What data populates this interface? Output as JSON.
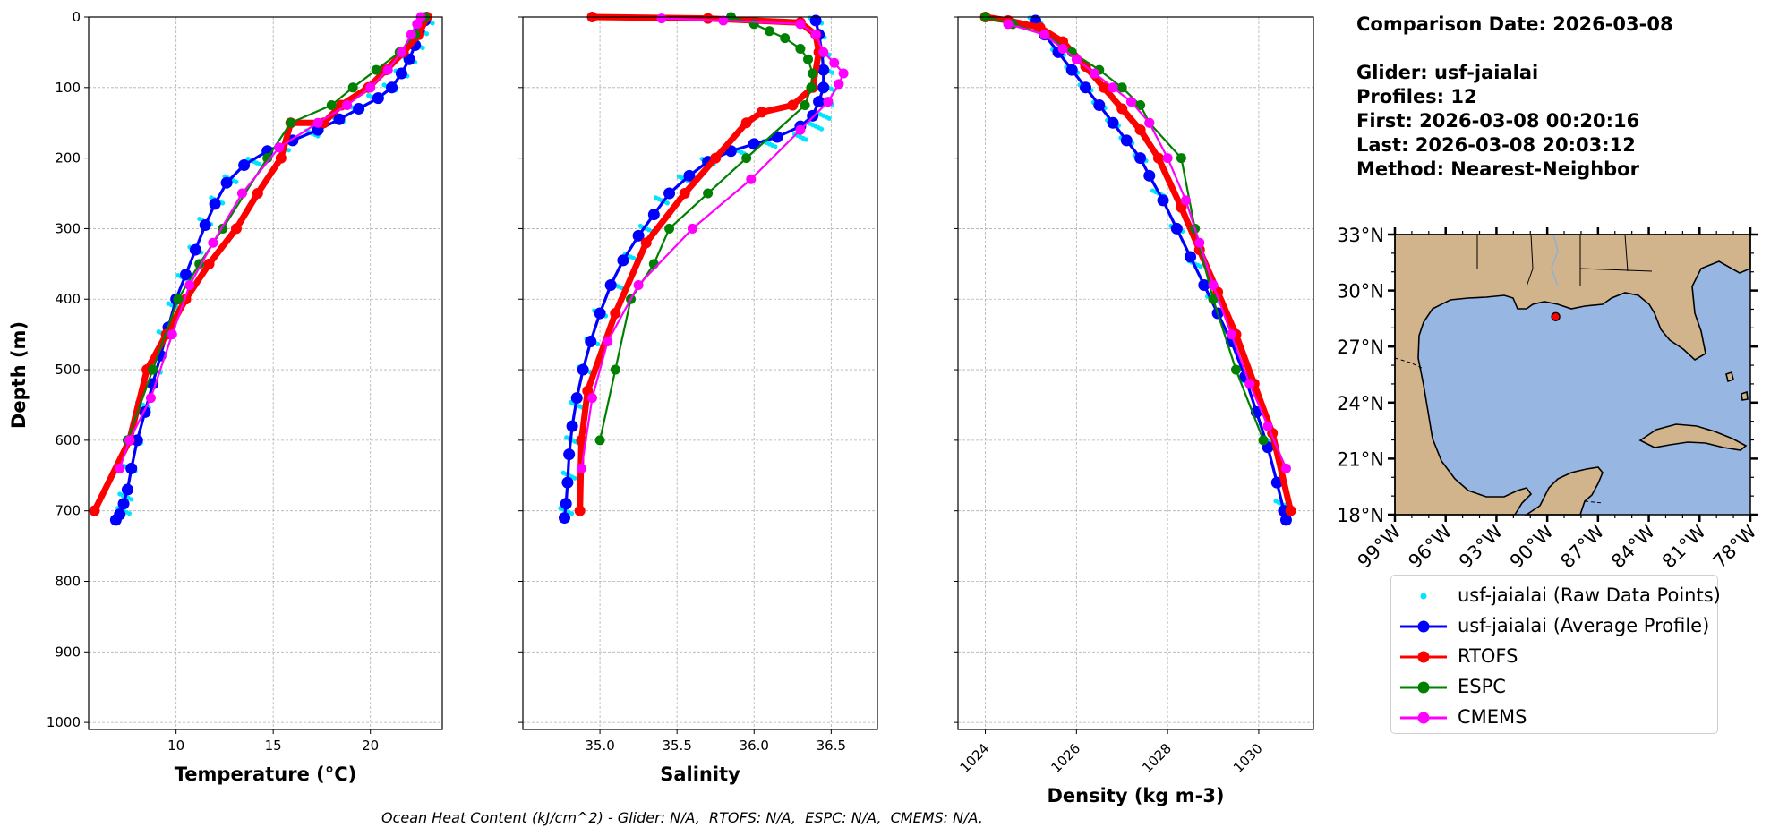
{
  "info": {
    "comparison_date": "Comparison Date: 2026-03-08",
    "glider": "Glider: usf-jaialai",
    "profiles": "Profiles: 12",
    "first": "First: 2026-03-08 00:20:16",
    "last": "Last: 2026-03-08 20:03:12",
    "method": "Method: Nearest-Neighbor"
  },
  "footer": "Ocean Heat Content (kJ/cm^2) - Glider: N/A,  RTOFS: N/A,  ESPC: N/A,  CMEMS: N/A,",
  "colors": {
    "raw": "#00e5ff",
    "average": "#0000ff",
    "rtofs": "#ff0000",
    "espc": "#008000",
    "cmems": "#ff00ff",
    "ocean": "#97b6e1",
    "land": "#d2b48c",
    "grid": "#b0b0b0"
  },
  "legend": [
    {
      "label": "usf-jaialai (Raw Data Points)",
      "key": "raw",
      "style": "dot"
    },
    {
      "label": "usf-jaialai (Average Profile)",
      "key": "average",
      "style": "line"
    },
    {
      "label": "RTOFS",
      "key": "rtofs",
      "style": "line"
    },
    {
      "label": "ESPC",
      "key": "espc",
      "style": "line"
    },
    {
      "label": "CMEMS",
      "key": "cmems",
      "style": "line"
    }
  ],
  "map": {
    "lat_ticks": [
      "18°N",
      "21°N",
      "24°N",
      "27°N",
      "30°N",
      "33°N"
    ],
    "lon_ticks": [
      "99°W",
      "96°W",
      "93°W",
      "90°W",
      "87°W",
      "84°W",
      "81°W",
      "78°W"
    ],
    "lat_range": [
      18,
      33
    ],
    "lon_range": [
      -99,
      -78
    ],
    "glider_position": {
      "lon": -89.5,
      "lat": 28.6
    }
  },
  "chart_data": [
    {
      "type": "line",
      "xlabel": "Temperature (°C)",
      "ylabel": "Depth (m)",
      "xlim": [
        5.5,
        23.7
      ],
      "ylim": [
        1010,
        0
      ],
      "xticks": [
        10,
        15,
        20
      ],
      "yticks": [
        0,
        100,
        200,
        300,
        400,
        500,
        600,
        700,
        800,
        900,
        1000
      ],
      "series": [
        {
          "name": "usf-jaialai (Raw Data Points)",
          "key": "raw",
          "mode": "scatter",
          "x": [
            22.9,
            22.6,
            22.4,
            22.0,
            21.6,
            21.0,
            20.2,
            19.2,
            18.3,
            17.0,
            15.5,
            14.0,
            12.8,
            12.1,
            11.5,
            11.0,
            10.4,
            9.9,
            9.4,
            8.9,
            8.3,
            7.9,
            7.6,
            7.4,
            7.3
          ],
          "y": [
            5,
            20,
            40,
            60,
            80,
            100,
            115,
            130,
            145,
            165,
            185,
            205,
            230,
            260,
            290,
            330,
            370,
            410,
            450,
            500,
            550,
            600,
            640,
            680,
            700
          ]
        },
        {
          "name": "usf-jaialai (Average Profile)",
          "key": "average",
          "mode": "line",
          "x": [
            22.8,
            22.5,
            22.3,
            22.0,
            21.6,
            21.1,
            20.4,
            19.4,
            18.4,
            17.3,
            16.0,
            14.7,
            13.5,
            12.6,
            12.0,
            11.5,
            11.0,
            10.5,
            10.0,
            9.6,
            9.2,
            8.8,
            8.4,
            8.0,
            7.7,
            7.5,
            7.3,
            7.1,
            6.9
          ],
          "y": [
            5,
            20,
            40,
            60,
            80,
            100,
            115,
            130,
            145,
            160,
            175,
            190,
            210,
            235,
            265,
            295,
            330,
            365,
            400,
            440,
            480,
            520,
            560,
            600,
            640,
            670,
            690,
            705,
            713
          ]
        },
        {
          "name": "RTOFS",
          "key": "rtofs",
          "mode": "thick",
          "x": [
            22.9,
            22.5,
            21.7,
            20.8,
            19.9,
            18.5,
            17.6,
            15.9,
            15.4,
            14.2,
            13.1,
            11.7,
            10.5,
            9.5,
            8.5,
            7.6,
            5.8
          ],
          "y": [
            0,
            25,
            50,
            75,
            100,
            125,
            150,
            150,
            200,
            250,
            300,
            350,
            400,
            450,
            500,
            600,
            700
          ]
        },
        {
          "name": "ESPC",
          "key": "espc",
          "mode": "line",
          "x": [
            22.8,
            22.3,
            21.5,
            20.3,
            19.1,
            18.0,
            15.9,
            14.7,
            12.4,
            11.2,
            10.1,
            8.8,
            7.5
          ],
          "y": [
            0,
            25,
            50,
            75,
            100,
            125,
            150,
            200,
            300,
            350,
            400,
            500,
            600
          ]
        },
        {
          "name": "CMEMS",
          "key": "cmems",
          "mode": "line",
          "x": [
            22.6,
            22.4,
            22.1,
            21.6,
            20.9,
            20.0,
            18.8,
            17.3,
            15.3,
            13.4,
            11.9,
            10.7,
            9.8,
            8.7,
            7.6,
            7.1
          ],
          "y": [
            0,
            10,
            25,
            50,
            75,
            100,
            125,
            150,
            185,
            250,
            320,
            380,
            450,
            540,
            600,
            640
          ]
        }
      ]
    },
    {
      "type": "line",
      "xlabel": "Salinity",
      "ylabel": "",
      "xlim": [
        34.5,
        36.8
      ],
      "ylim": [
        1010,
        0
      ],
      "xticks": [
        35.0,
        35.5,
        36.0,
        36.5
      ],
      "xtick_labels": [
        "35.0",
        "35.5",
        "36.0",
        "36.5"
      ],
      "yticks": [
        0,
        100,
        200,
        300,
        400,
        500,
        600,
        700,
        800,
        900,
        1000
      ],
      "series": [
        {
          "name": "usf-jaialai (Raw Data Points)",
          "key": "raw",
          "mode": "scatter",
          "x": [
            36.4,
            36.42,
            36.45,
            36.47,
            36.48,
            36.47,
            36.45,
            36.4,
            36.3,
            36.1,
            35.9,
            35.7,
            35.55,
            35.4,
            35.3,
            35.2,
            35.1,
            35.0,
            34.95,
            34.9,
            34.85,
            34.82,
            34.8,
            34.78
          ],
          "y": [
            5,
            25,
            50,
            75,
            100,
            120,
            140,
            155,
            170,
            180,
            190,
            205,
            230,
            260,
            300,
            340,
            380,
            420,
            460,
            500,
            550,
            600,
            650,
            700
          ]
        },
        {
          "name": "usf-jaialai (Average Profile)",
          "key": "average",
          "mode": "line",
          "x": [
            36.4,
            36.42,
            36.44,
            36.45,
            36.45,
            36.42,
            36.38,
            36.3,
            36.15,
            36.0,
            35.85,
            35.7,
            35.58,
            35.45,
            35.35,
            35.25,
            35.15,
            35.07,
            35.0,
            34.94,
            34.89,
            34.85,
            34.82,
            34.8,
            34.79,
            34.78,
            34.77
          ],
          "y": [
            5,
            25,
            50,
            75,
            100,
            120,
            140,
            155,
            170,
            180,
            190,
            205,
            225,
            250,
            280,
            310,
            345,
            380,
            420,
            460,
            500,
            540,
            580,
            620,
            660,
            690,
            710
          ]
        },
        {
          "name": "RTOFS",
          "key": "rtofs",
          "mode": "thick",
          "x": [
            34.95,
            35.7,
            36.3,
            36.4,
            36.42,
            36.38,
            36.25,
            36.05,
            35.95,
            35.75,
            35.55,
            35.3,
            35.1,
            34.92,
            34.88,
            34.87
          ],
          "y": [
            0,
            2,
            8,
            25,
            50,
            100,
            125,
            135,
            150,
            200,
            250,
            320,
            420,
            530,
            600,
            700
          ]
        },
        {
          "name": "ESPC",
          "key": "espc",
          "mode": "line",
          "x": [
            35.85,
            36.0,
            36.1,
            36.2,
            36.3,
            36.35,
            36.38,
            36.37,
            36.33,
            35.95,
            35.7,
            35.45,
            35.35,
            35.2,
            35.1,
            35.0
          ],
          "y": [
            0,
            10,
            20,
            30,
            45,
            60,
            80,
            100,
            125,
            200,
            250,
            300,
            350,
            400,
            500,
            600
          ]
        },
        {
          "name": "CMEMS",
          "key": "cmems",
          "mode": "line",
          "x": [
            35.4,
            35.8,
            36.3,
            36.4,
            36.45,
            36.52,
            36.58,
            36.55,
            36.48,
            36.3,
            35.98,
            35.6,
            35.25,
            35.05,
            34.95,
            34.88
          ],
          "y": [
            2,
            5,
            10,
            25,
            50,
            65,
            80,
            95,
            120,
            160,
            230,
            300,
            380,
            460,
            540,
            640
          ]
        }
      ]
    },
    {
      "type": "line",
      "xlabel": "Density (kg m-3)",
      "ylabel": "",
      "xlim": [
        1023.4,
        1031.2
      ],
      "ylim": [
        1010,
        0
      ],
      "xticks": [
        1024,
        1026,
        1028,
        1030
      ],
      "yticks": [
        0,
        100,
        200,
        300,
        400,
        500,
        600,
        700,
        800,
        900,
        1000
      ],
      "series": [
        {
          "name": "usf-jaialai (Raw Data Points)",
          "key": "raw",
          "mode": "scatter",
          "x": [
            1025.1,
            1025.3,
            1025.6,
            1025.9,
            1026.2,
            1026.5,
            1026.8,
            1027.1,
            1027.4,
            1027.8,
            1028.2,
            1028.6,
            1029.0,
            1029.4,
            1029.8,
            1030.2,
            1030.5
          ],
          "y": [
            5,
            25,
            50,
            75,
            100,
            125,
            150,
            175,
            200,
            250,
            300,
            350,
            400,
            450,
            520,
            600,
            690
          ]
        },
        {
          "name": "usf-jaialai (Average Profile)",
          "key": "average",
          "mode": "line",
          "x": [
            1025.1,
            1025.3,
            1025.6,
            1025.9,
            1026.2,
            1026.5,
            1026.8,
            1027.1,
            1027.4,
            1027.6,
            1027.9,
            1028.2,
            1028.5,
            1028.8,
            1029.1,
            1029.4,
            1029.7,
            1029.95,
            1030.2,
            1030.4,
            1030.55,
            1030.6
          ],
          "y": [
            5,
            25,
            50,
            75,
            100,
            125,
            150,
            175,
            200,
            225,
            260,
            300,
            340,
            380,
            420,
            460,
            510,
            560,
            610,
            660,
            700,
            713
          ]
        },
        {
          "name": "RTOFS",
          "key": "rtofs",
          "mode": "thick",
          "x": [
            1024.0,
            1024.5,
            1025.2,
            1025.7,
            1026.2,
            1026.6,
            1027.0,
            1027.4,
            1027.8,
            1028.3,
            1028.7,
            1029.1,
            1029.5,
            1029.9,
            1030.3,
            1030.7
          ],
          "y": [
            0,
            5,
            15,
            35,
            70,
            100,
            130,
            160,
            200,
            270,
            330,
            390,
            450,
            520,
            590,
            700
          ]
        },
        {
          "name": "ESPC",
          "key": "espc",
          "mode": "line",
          "x": [
            1024.0,
            1024.6,
            1025.3,
            1025.9,
            1026.5,
            1027.0,
            1027.4,
            1027.6,
            1028.3,
            1028.6,
            1029.0,
            1029.5,
            1030.1
          ],
          "y": [
            0,
            10,
            25,
            50,
            75,
            100,
            125,
            150,
            200,
            300,
            400,
            500,
            600
          ]
        },
        {
          "name": "CMEMS",
          "key": "cmems",
          "mode": "line",
          "x": [
            1024.5,
            1025.3,
            1025.7,
            1026.0,
            1026.4,
            1026.8,
            1027.2,
            1027.6,
            1028.0,
            1028.4,
            1028.7,
            1029.0,
            1029.4,
            1029.8,
            1030.2,
            1030.6
          ],
          "y": [
            10,
            25,
            45,
            60,
            80,
            100,
            120,
            150,
            200,
            260,
            320,
            380,
            450,
            520,
            580,
            640
          ]
        }
      ]
    }
  ]
}
